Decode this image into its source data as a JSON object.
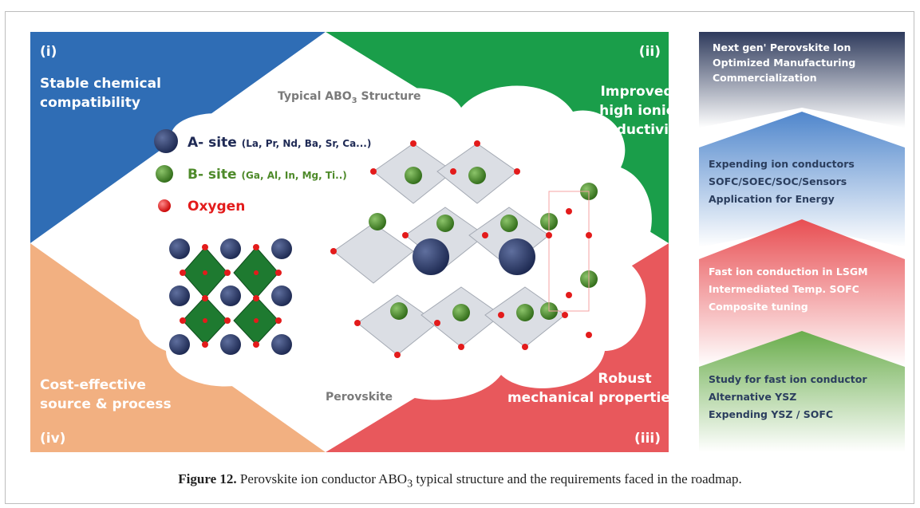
{
  "quadrants": {
    "i": {
      "num": "(i)",
      "line1": "Stable chemical",
      "line2": "compatibility"
    },
    "ii": {
      "num": "(ii)",
      "line1": "Improved",
      "line2": "high ionic",
      "line3": "conductivity"
    },
    "iii": {
      "num": "(iii)",
      "line1": "Robust",
      "line2": "mechanical properties"
    },
    "iv": {
      "num": "(iv)",
      "line1": "Cost-effective",
      "line2": "source & process"
    }
  },
  "structure": {
    "title_prefix": "Typical ABO",
    "title_sub": "3",
    "title_suffix": " Structure",
    "perovskite_label": "Perovskite"
  },
  "legend": {
    "a_site": {
      "label": "A- site",
      "detail": "(La, Pr, Nd, Ba, Sr, Ca...)",
      "color": "#2b3a67"
    },
    "b_site": {
      "label": "B- site",
      "detail": "(Ga, Al, In, Mg, Ti..)",
      "color": "#4e8a2a"
    },
    "oxygen": {
      "label": "Oxygen",
      "color": "#e31b1b"
    }
  },
  "roadmap": [
    {
      "lines": [
        "Next gen' Perovskite Ion",
        "Optimized Manufacturing",
        "Commercialization"
      ],
      "color": "#2e3a5c"
    },
    {
      "lines": [
        "Expending ion conductors",
        "SOFC/SOEC/SOC/Sensors",
        "Application for Energy"
      ],
      "color": "#5b8fd0"
    },
    {
      "lines": [
        "Fast ion conduction in LSGM",
        "Intermediated Temp. SOFC",
        "Composite tuning"
      ],
      "color": "#e8565a"
    },
    {
      "lines": [
        "Study for fast ion conductor",
        "Alternative YSZ",
        "Expending YSZ / SOFC"
      ],
      "color": "#6fae55"
    }
  ],
  "caption": {
    "label": "Figure 12.",
    "text": " Perovskite ion conductor ABO",
    "sub": "3",
    "text2": " typical structure and the requirements faced in the roadmap."
  }
}
